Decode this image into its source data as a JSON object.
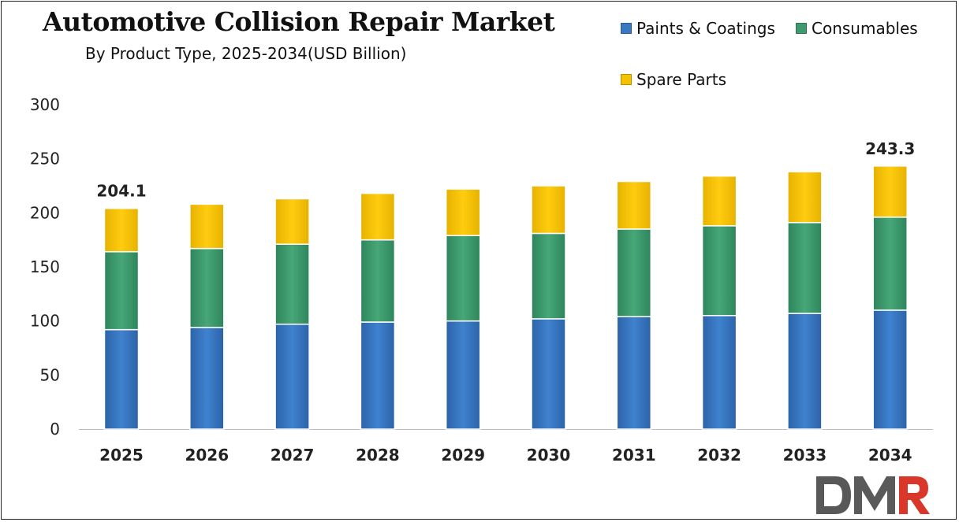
{
  "chart_data": {
    "type": "bar",
    "stacked": true,
    "title": "Automotive Collision Repair Market",
    "subtitle": "By Product Type, 2025-2034(USD Billion)",
    "categories": [
      "2025",
      "2026",
      "2027",
      "2028",
      "2029",
      "2030",
      "2031",
      "2032",
      "2033",
      "2034"
    ],
    "series": [
      {
        "name": "Paints & Coatings",
        "color": "#3a78c2",
        "values": [
          92,
          94,
          97,
          99,
          100,
          102,
          104,
          105,
          107,
          110
        ]
      },
      {
        "name": "Consumables",
        "color": "#3f9b6f",
        "values": [
          72,
          73,
          74,
          76,
          79,
          79,
          81,
          83,
          84,
          86
        ]
      },
      {
        "name": "Spare Parts",
        "color": "#f5c200",
        "values": [
          40.1,
          41,
          42,
          43,
          43,
          44,
          44,
          46,
          47,
          47.3
        ]
      }
    ],
    "totals_labels": [
      {
        "category": "2025",
        "label": "204.1"
      },
      {
        "category": "2034",
        "label": "243.3"
      }
    ],
    "yticks": [
      "0",
      "50",
      "100",
      "150",
      "200",
      "250",
      "300"
    ],
    "ylim": [
      0,
      300
    ],
    "grid": false,
    "legend_position": "top-right"
  },
  "logo": {
    "text": "DMR",
    "colors": [
      "#555555",
      "#d9372a"
    ]
  }
}
